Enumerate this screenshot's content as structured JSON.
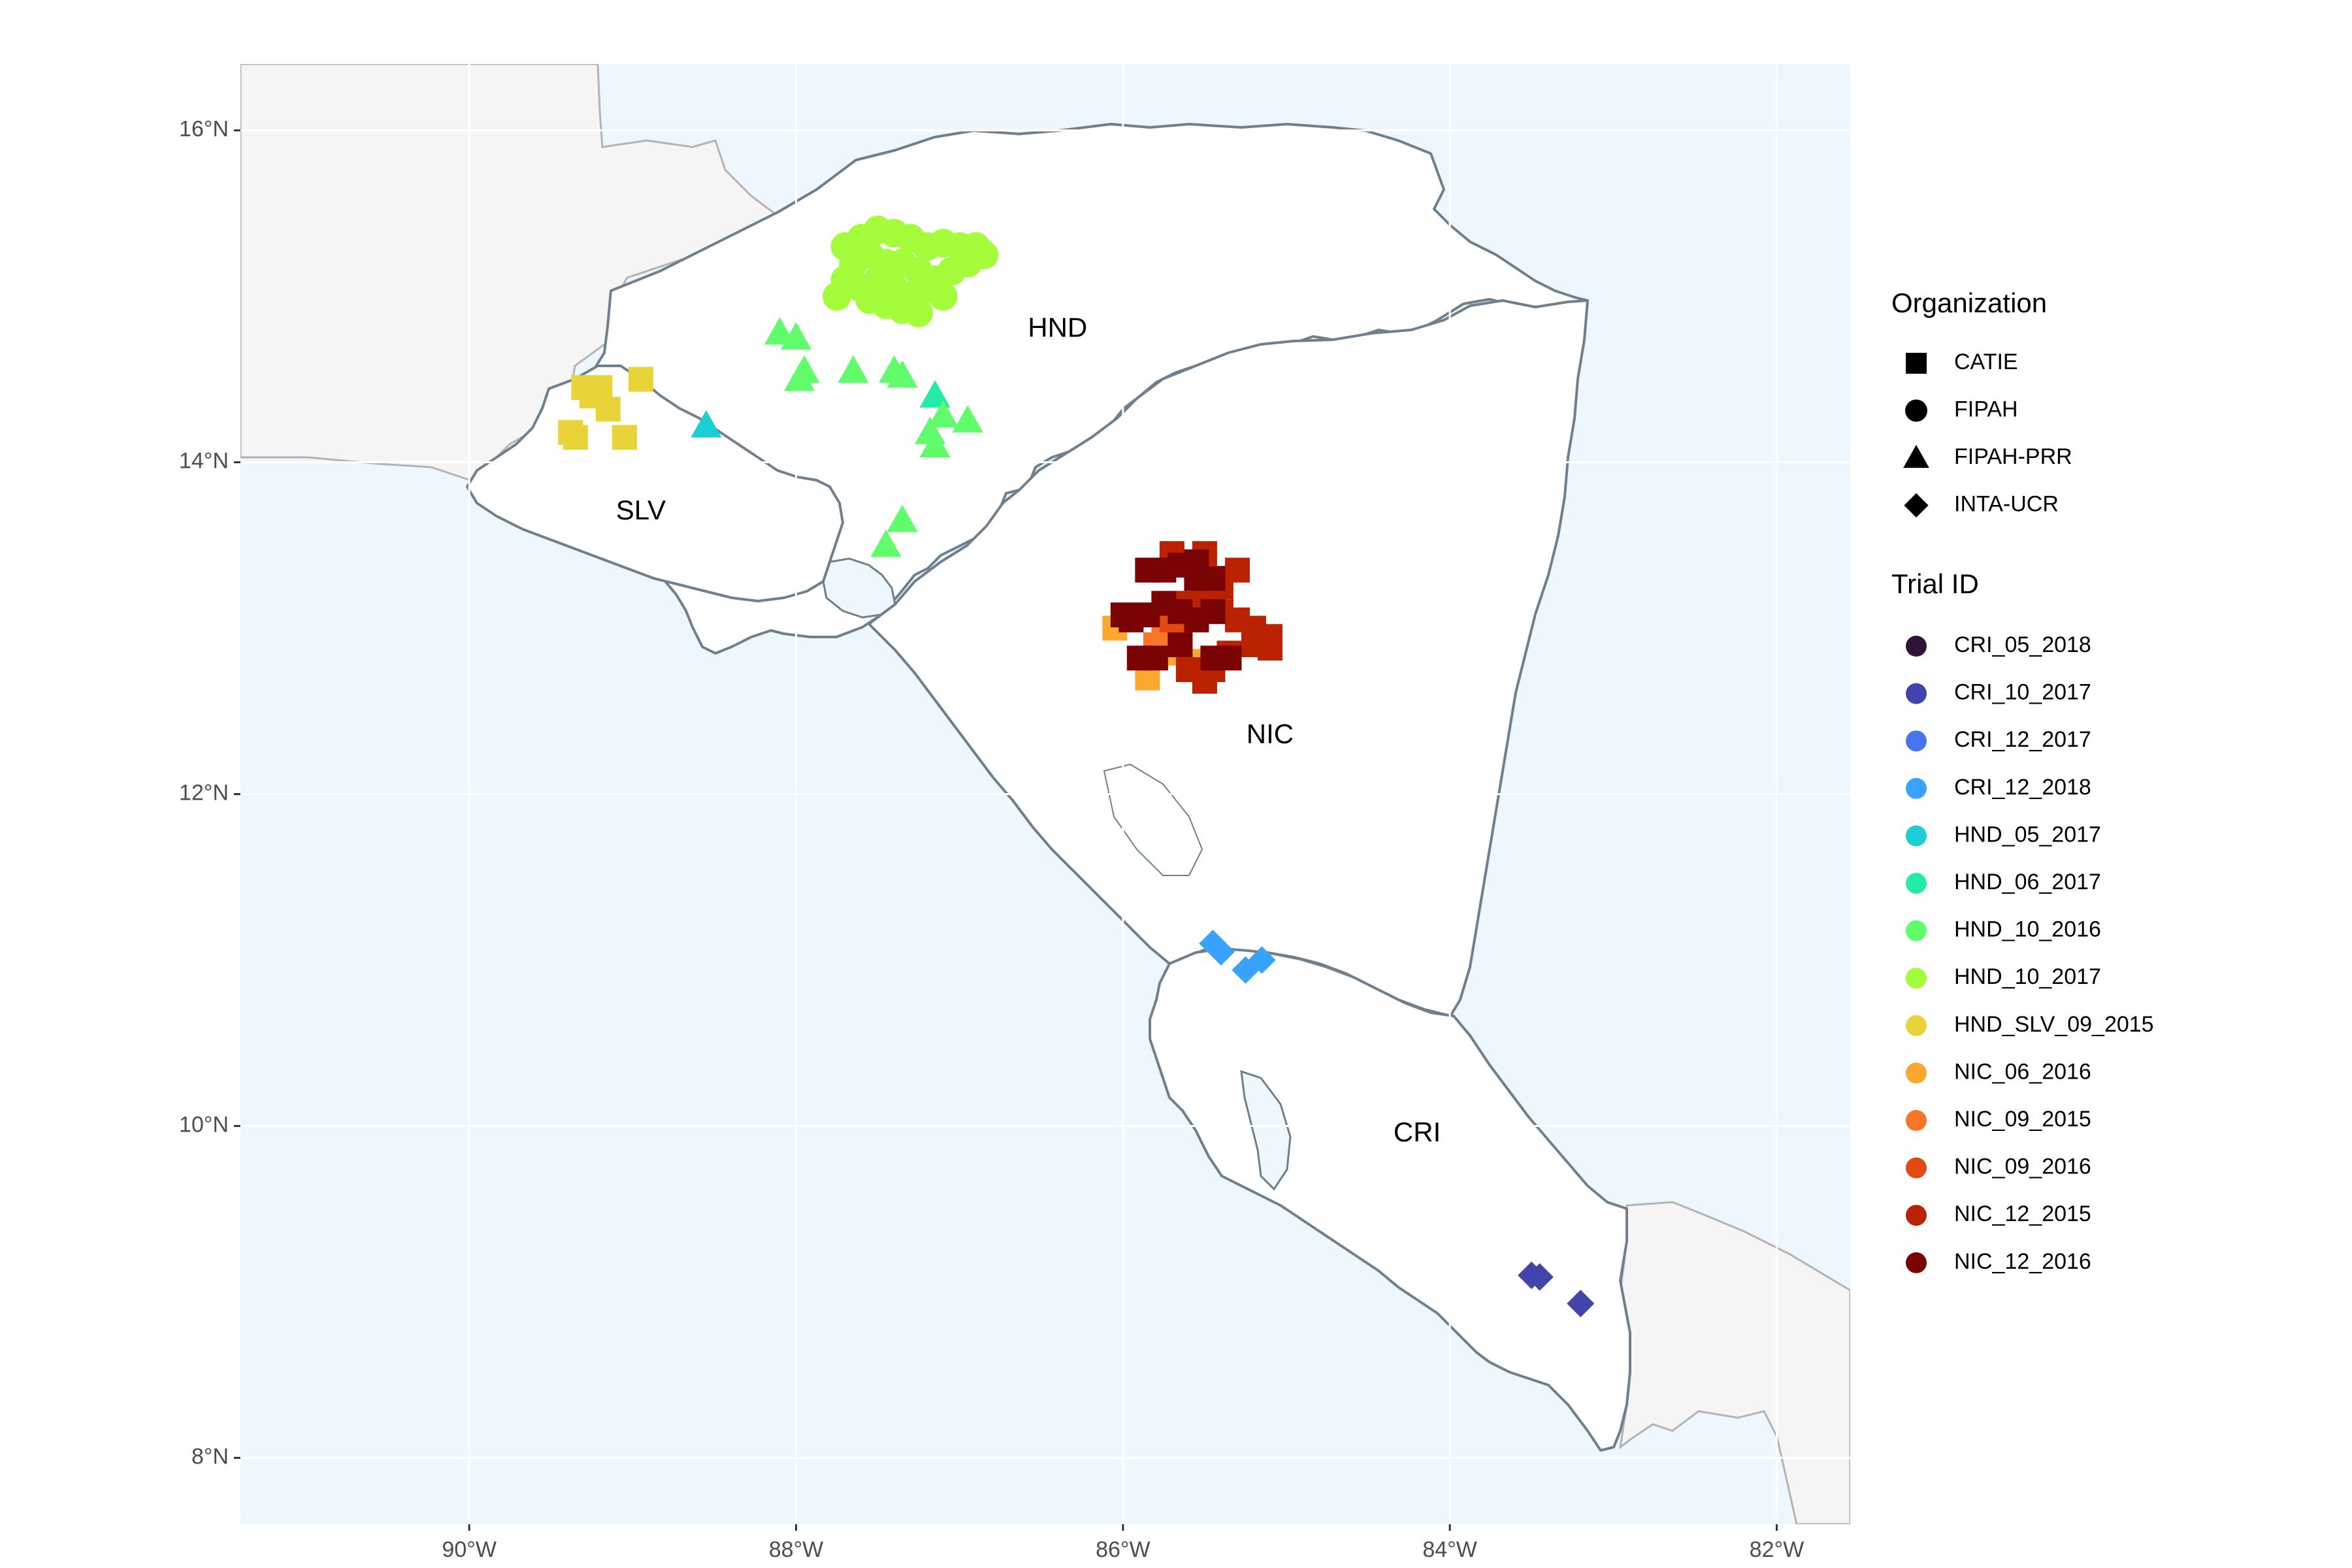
{
  "map": {
    "lon_range": [
      -91.4,
      -81.55
    ],
    "lat_range": [
      7.6,
      16.4
    ],
    "x_ticks": [
      {
        "value": -90,
        "label": "90°W"
      },
      {
        "value": -88,
        "label": "88°W"
      },
      {
        "value": -86,
        "label": "86°W"
      },
      {
        "value": -84,
        "label": "84°W"
      },
      {
        "value": -82,
        "label": "82°W"
      }
    ],
    "y_ticks": [
      {
        "value": 8,
        "label": "8°N"
      },
      {
        "value": 10,
        "label": "10°N"
      },
      {
        "value": 12,
        "label": "12°N"
      },
      {
        "value": 14,
        "label": "14°N"
      },
      {
        "value": 16,
        "label": "16°N"
      }
    ],
    "grid": true,
    "colors": {
      "sea": "#eff7fe",
      "land_other": "#f5f5f5",
      "land_focus": "#ffffff",
      "border_focus": "#6e7f8e",
      "border_other": "#b3b3b3",
      "grid": "#ffffff"
    },
    "country_labels": [
      {
        "code": "HND",
        "lon": -86.4,
        "lat": 14.8
      },
      {
        "code": "SLV",
        "lon": -88.95,
        "lat": 13.7
      },
      {
        "code": "NIC",
        "lon": -85.1,
        "lat": 12.35
      },
      {
        "code": "CRI",
        "lon": -84.2,
        "lat": 9.95
      }
    ]
  },
  "legend": {
    "placement": "right",
    "organization_title": "Organization",
    "organizations": [
      {
        "name": "CATIE",
        "shape": "square"
      },
      {
        "name": "FIPAH",
        "shape": "circle"
      },
      {
        "name": "FIPAH-PRR",
        "shape": "triangle"
      },
      {
        "name": "INTA-UCR",
        "shape": "diamond"
      }
    ],
    "trial_title": "Trial ID",
    "trials": [
      {
        "id": "CRI_05_2018",
        "color": "#30123b"
      },
      {
        "id": "CRI_10_2017",
        "color": "#4145ab"
      },
      {
        "id": "CRI_12_2017",
        "color": "#4675ed"
      },
      {
        "id": "CRI_12_2018",
        "color": "#39a2fc"
      },
      {
        "id": "HND_05_2017",
        "color": "#1bcfd4"
      },
      {
        "id": "HND_06_2017",
        "color": "#24eca6"
      },
      {
        "id": "HND_10_2016",
        "color": "#61fc6c"
      },
      {
        "id": "HND_10_2017",
        "color": "#a4fc3b"
      },
      {
        "id": "HND_SLV_09_2015",
        "color": "#e8d439"
      },
      {
        "id": "NIC_06_2016",
        "color": "#fba730"
      },
      {
        "id": "NIC_09_2015",
        "color": "#f8762a"
      },
      {
        "id": "NIC_09_2016",
        "color": "#e24a0f"
      },
      {
        "id": "NIC_12_2015",
        "color": "#bb2202"
      },
      {
        "id": "NIC_12_2016",
        "color": "#7a0403"
      }
    ]
  },
  "chart_data": {
    "type": "scatter",
    "xlabel": "",
    "ylabel": "",
    "xlim": [
      -91.4,
      -81.55
    ],
    "ylim": [
      7.6,
      16.4
    ],
    "series": [
      {
        "name": "CRI_10_2017",
        "shape": "diamond",
        "points": [
          [
            -83.5,
            9.1
          ],
          [
            -83.45,
            9.09
          ],
          [
            -83.2,
            8.93
          ]
        ]
      },
      {
        "name": "CRI_12_2018",
        "shape": "diamond",
        "points": [
          [
            -85.45,
            11.1
          ],
          [
            -85.4,
            11.05
          ],
          [
            -85.25,
            10.94
          ],
          [
            -85.15,
            11.0
          ]
        ]
      },
      {
        "name": "HND_05_2017",
        "shape": "triangle",
        "points": [
          [
            -88.55,
            14.22
          ]
        ]
      },
      {
        "name": "HND_06_2017",
        "shape": "triangle",
        "points": [
          [
            -87.15,
            14.4
          ]
        ]
      },
      {
        "name": "HND_10_2016",
        "shape": "triangle",
        "points": [
          [
            -88.1,
            14.78
          ],
          [
            -88.0,
            14.75
          ],
          [
            -87.95,
            14.55
          ],
          [
            -87.98,
            14.5
          ],
          [
            -87.65,
            14.55
          ],
          [
            -87.4,
            14.55
          ],
          [
            -87.35,
            14.52
          ],
          [
            -87.1,
            14.28
          ],
          [
            -87.18,
            14.18
          ],
          [
            -87.15,
            14.1
          ],
          [
            -86.95,
            14.25
          ],
          [
            -87.35,
            13.65
          ],
          [
            -87.45,
            13.5
          ]
        ]
      },
      {
        "name": "HND_10_2017",
        "shape": "circle",
        "points": [
          [
            -87.7,
            15.3
          ],
          [
            -87.6,
            15.35
          ],
          [
            -87.5,
            15.4
          ],
          [
            -87.4,
            15.38
          ],
          [
            -87.3,
            15.35
          ],
          [
            -87.2,
            15.3
          ],
          [
            -87.1,
            15.32
          ],
          [
            -87.0,
            15.3
          ],
          [
            -86.9,
            15.3
          ],
          [
            -86.85,
            15.25
          ],
          [
            -87.65,
            15.2
          ],
          [
            -87.55,
            15.25
          ],
          [
            -87.45,
            15.2
          ],
          [
            -87.35,
            15.2
          ],
          [
            -87.25,
            15.15
          ],
          [
            -87.15,
            15.1
          ],
          [
            -87.05,
            15.15
          ],
          [
            -86.95,
            15.2
          ],
          [
            -87.6,
            15.05
          ],
          [
            -87.5,
            15.1
          ],
          [
            -87.4,
            15.05
          ],
          [
            -87.3,
            15.0
          ],
          [
            -87.2,
            15.05
          ],
          [
            -87.1,
            15.0
          ],
          [
            -87.7,
            15.1
          ],
          [
            -87.75,
            15.0
          ],
          [
            -87.35,
            14.92
          ],
          [
            -87.25,
            14.9
          ],
          [
            -87.45,
            14.95
          ],
          [
            -87.55,
            14.98
          ]
        ]
      },
      {
        "name": "HND_SLV_09_2015",
        "shape": "square",
        "points": [
          [
            -89.3,
            14.45
          ],
          [
            -89.2,
            14.45
          ],
          [
            -89.25,
            14.4
          ],
          [
            -89.15,
            14.32
          ],
          [
            -88.95,
            14.5
          ],
          [
            -89.35,
            14.15
          ],
          [
            -89.38,
            14.18
          ],
          [
            -89.05,
            14.15
          ]
        ]
      },
      {
        "name": "NIC_06_2016",
        "shape": "square",
        "points": [
          [
            -86.05,
            13.0
          ],
          [
            -85.95,
            13.05
          ],
          [
            -85.85,
            12.7
          ],
          [
            -85.7,
            12.85
          ],
          [
            -85.6,
            12.8
          ]
        ]
      },
      {
        "name": "NIC_09_2015",
        "shape": "square",
        "points": [
          [
            -85.8,
            12.9
          ],
          [
            -85.7,
            12.95
          ],
          [
            -85.65,
            12.9
          ],
          [
            -85.75,
            13.0
          ]
        ]
      },
      {
        "name": "NIC_09_2016",
        "shape": "square",
        "points": [
          [
            -85.65,
            12.95
          ],
          [
            -85.55,
            13.05
          ],
          [
            -85.7,
            13.05
          ]
        ]
      },
      {
        "name": "NIC_12_2015",
        "shape": "square",
        "points": [
          [
            -85.7,
            13.45
          ],
          [
            -85.6,
            13.4
          ],
          [
            -85.5,
            13.45
          ],
          [
            -85.3,
            13.35
          ],
          [
            -85.4,
            13.25
          ],
          [
            -85.5,
            13.2
          ],
          [
            -85.6,
            13.15
          ],
          [
            -85.4,
            13.1
          ],
          [
            -85.3,
            13.05
          ],
          [
            -85.2,
            13.0
          ],
          [
            -85.1,
            12.95
          ],
          [
            -85.2,
            12.9
          ],
          [
            -85.1,
            12.88
          ],
          [
            -85.35,
            12.85
          ],
          [
            -85.45,
            12.75
          ],
          [
            -85.5,
            12.68
          ],
          [
            -85.6,
            12.75
          ]
        ]
      },
      {
        "name": "NIC_12_2016",
        "shape": "square",
        "points": [
          [
            -85.85,
            13.35
          ],
          [
            -85.75,
            13.35
          ],
          [
            -85.65,
            13.38
          ],
          [
            -85.55,
            13.4
          ],
          [
            -85.45,
            13.3
          ],
          [
            -85.55,
            13.3
          ],
          [
            -86.0,
            13.08
          ],
          [
            -85.95,
            13.05
          ],
          [
            -85.85,
            13.08
          ],
          [
            -85.75,
            13.15
          ],
          [
            -85.65,
            13.1
          ],
          [
            -85.55,
            13.05
          ],
          [
            -85.45,
            13.1
          ],
          [
            -85.9,
            12.82
          ],
          [
            -85.8,
            12.82
          ],
          [
            -85.45,
            12.82
          ],
          [
            -85.35,
            12.82
          ],
          [
            -85.65,
            12.9
          ]
        ]
      }
    ]
  }
}
